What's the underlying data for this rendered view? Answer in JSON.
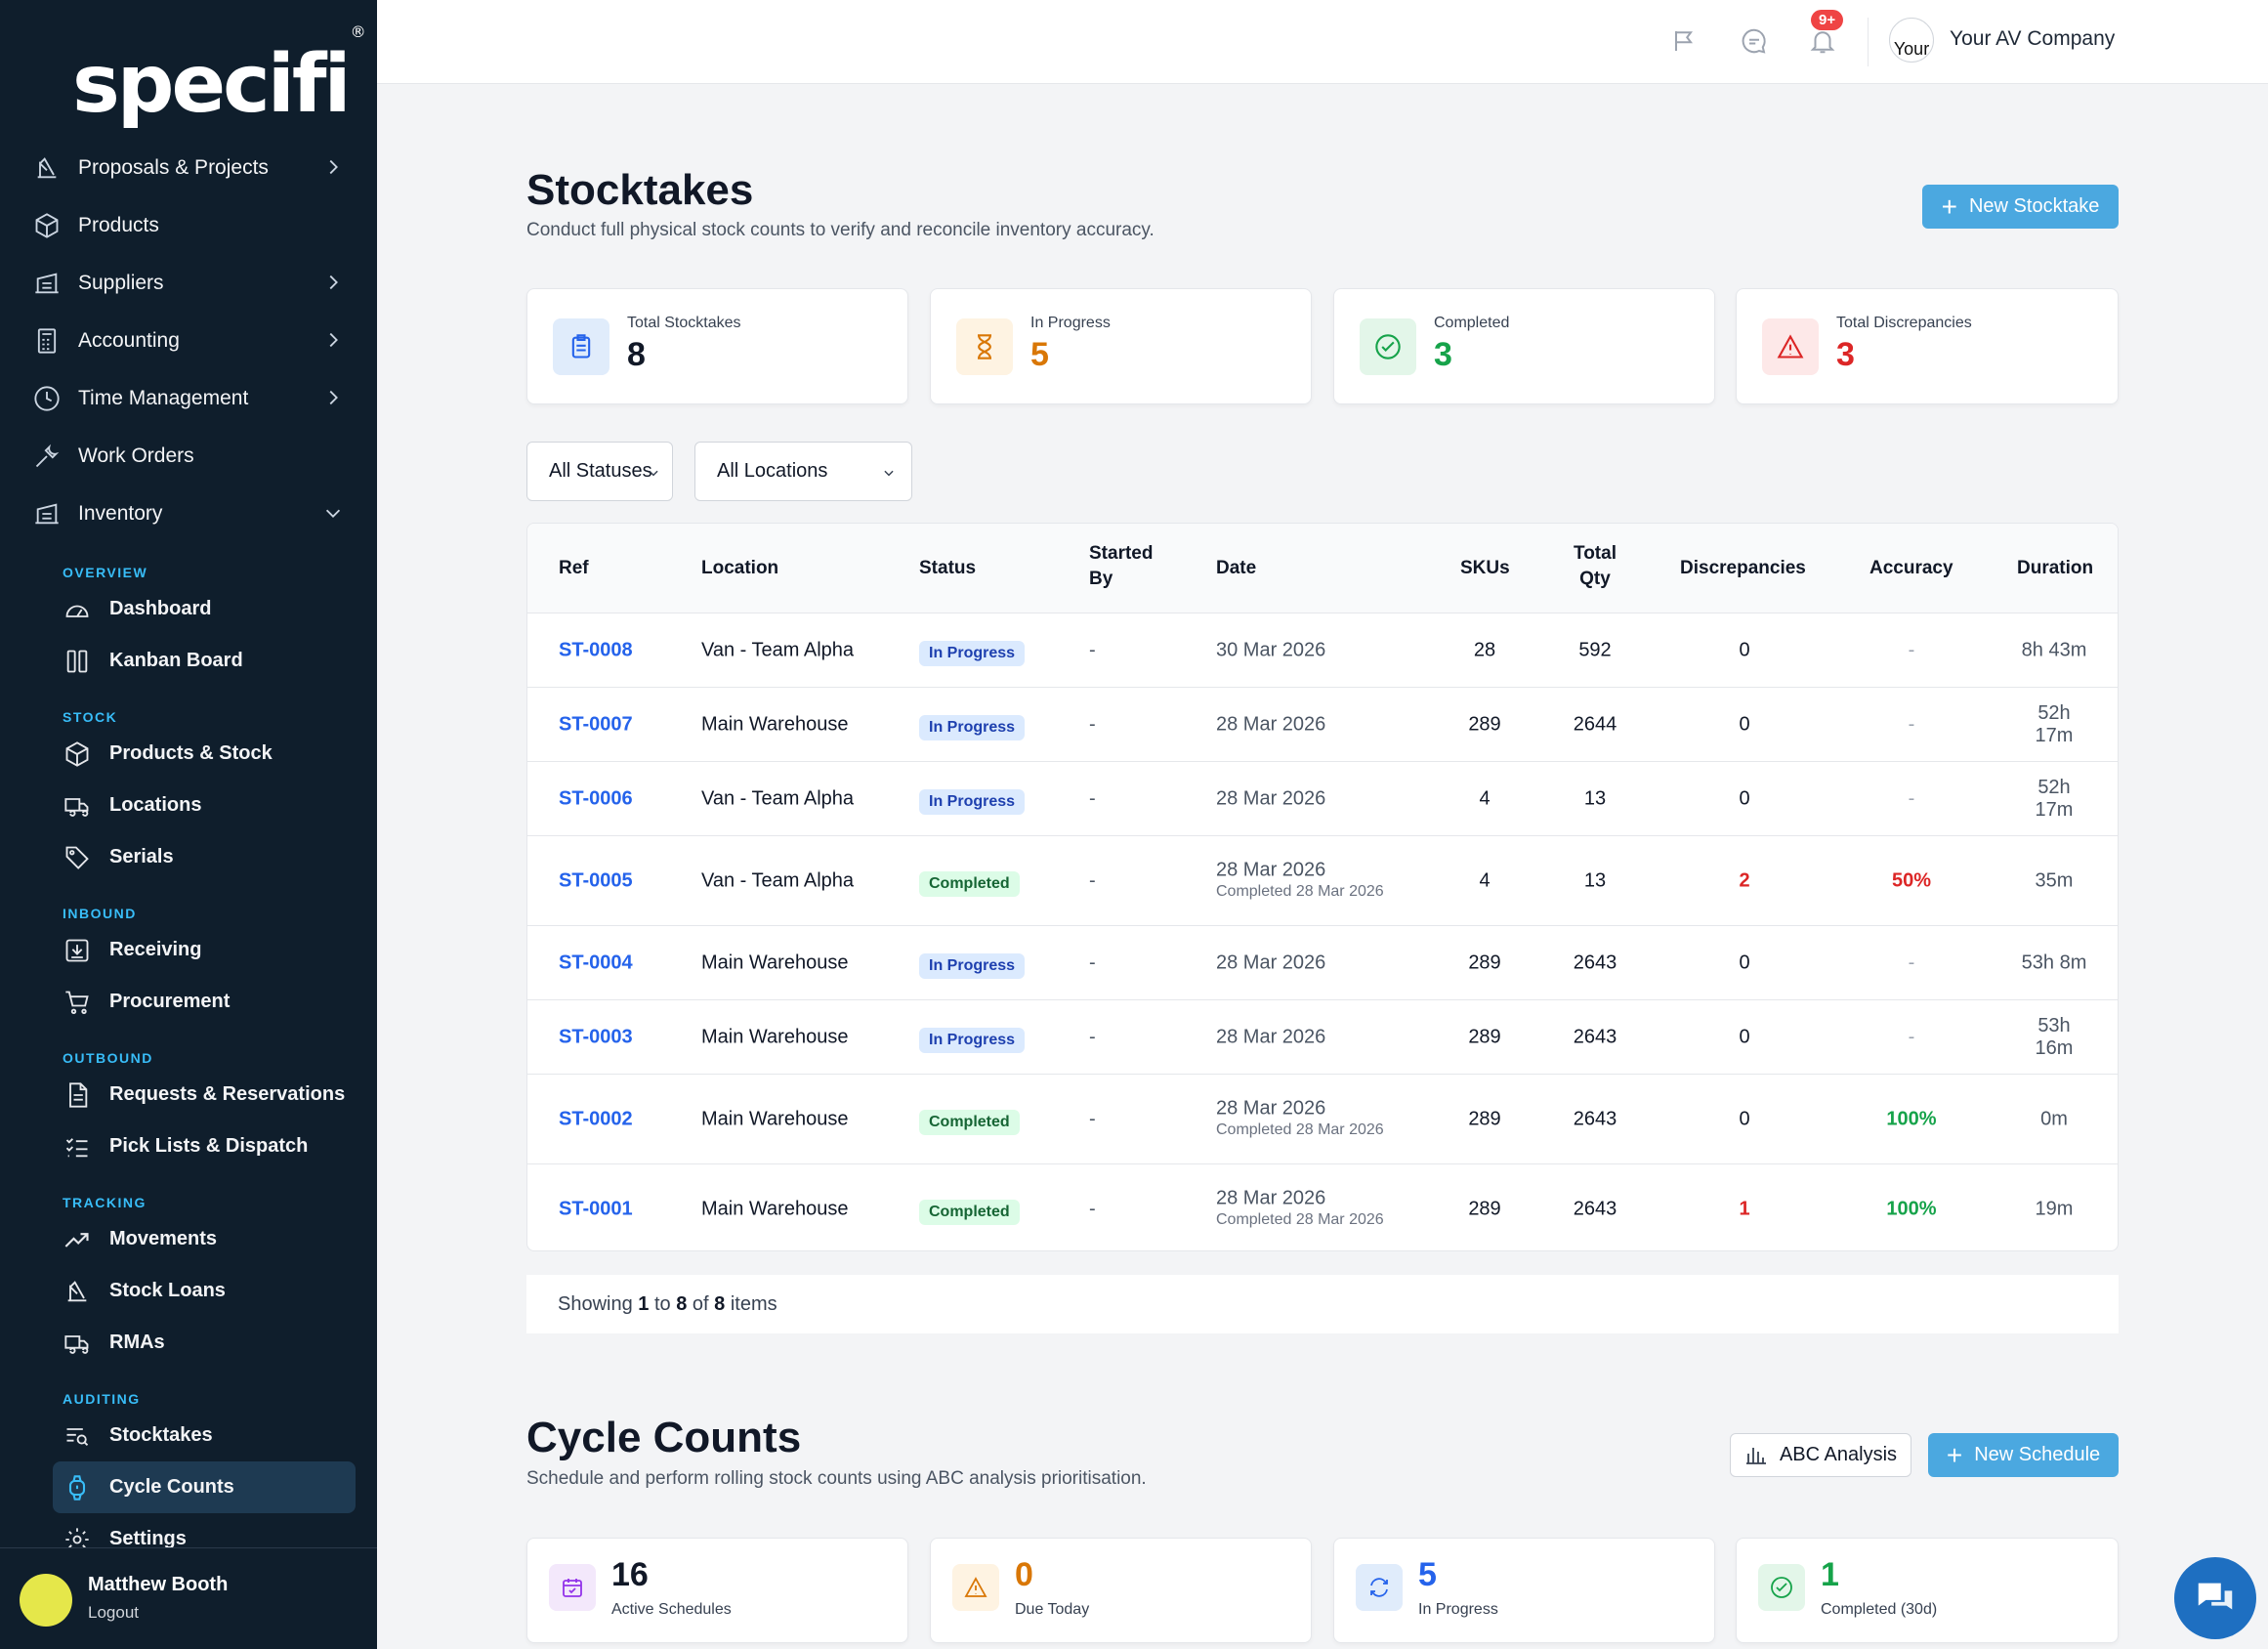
{
  "brand": {
    "logo_text": "specifi",
    "reg_mark": "®"
  },
  "sidebar": {
    "main": [
      {
        "label": "Proposals & Projects",
        "icon": "drafting-icon",
        "chevron": "right"
      },
      {
        "label": "Products",
        "icon": "box-icon",
        "chevron": ""
      },
      {
        "label": "Suppliers",
        "icon": "warehouse-icon",
        "chevron": "right"
      },
      {
        "label": "Accounting",
        "icon": "calculator-icon",
        "chevron": "right"
      },
      {
        "label": "Time Management",
        "icon": "clock-icon",
        "chevron": "right"
      },
      {
        "label": "Work Orders",
        "icon": "wrench-icon",
        "chevron": ""
      },
      {
        "label": "Inventory",
        "icon": "warehouse-icon",
        "chevron": "down"
      }
    ],
    "sections": {
      "overview": "OVERVIEW",
      "stock": "STOCK",
      "inbound": "INBOUND",
      "outbound": "OUTBOUND",
      "tracking": "TRACKING",
      "auditing": "AUDITING"
    },
    "sub": {
      "dashboard": "Dashboard",
      "kanban": "Kanban Board",
      "products_stock": "Products & Stock",
      "locations": "Locations",
      "serials": "Serials",
      "receiving": "Receiving",
      "procurement": "Procurement",
      "requests": "Requests & Reservations",
      "picklists": "Pick Lists & Dispatch",
      "movements": "Movements",
      "stock_loans": "Stock Loans",
      "rmas": "RMAs",
      "stocktakes": "Stocktakes",
      "cycle_counts": "Cycle Counts",
      "settings": "Settings"
    },
    "user": {
      "name": "Matthew Booth",
      "logout": "Logout"
    }
  },
  "topbar": {
    "notification_badge": "9+",
    "company_avatar_alt": "Your",
    "company_name": "Your AV Company"
  },
  "stocktakes": {
    "title": "Stocktakes",
    "subtitle": "Conduct full physical stock counts to verify and reconcile inventory accuracy.",
    "new_button": "New Stocktake",
    "stats": [
      {
        "label": "Total Stocktakes",
        "value": "8",
        "color": "#111827",
        "icon": "clipboard-icon",
        "bg": "#e0ecfb"
      },
      {
        "label": "In Progress",
        "value": "5",
        "color": "#d97706",
        "icon": "hourglass-icon",
        "bg": "#fef3e2"
      },
      {
        "label": "Completed",
        "value": "3",
        "color": "#16a34a",
        "icon": "check-circle-icon",
        "bg": "#e3f6e9"
      },
      {
        "label": "Total Discrepancies",
        "value": "3",
        "color": "#dc2626",
        "icon": "warning-icon",
        "bg": "#fde8e8"
      }
    ],
    "filters": {
      "status": "All Statuses",
      "location": "All Locations"
    },
    "columns": {
      "ref": "Ref",
      "location": "Location",
      "status": "Status",
      "started_by_1": "Started",
      "started_by_2": "By",
      "date": "Date",
      "skus": "SKUs",
      "total_qty_1": "Total",
      "total_qty_2": "Qty",
      "discrepancies": "Discrepancies",
      "accuracy": "Accuracy",
      "duration": "Duration"
    },
    "rows": [
      {
        "ref": "ST-0008",
        "location": "Van - Team Alpha",
        "status": "In Progress",
        "started_by": "-",
        "date": "30 Mar 2026",
        "completed": "",
        "skus": "28",
        "qty": "592",
        "disc": "0",
        "acc": "-",
        "duration": "8h 43m"
      },
      {
        "ref": "ST-0007",
        "location": "Main Warehouse",
        "status": "In Progress",
        "started_by": "-",
        "date": "28 Mar 2026",
        "completed": "",
        "skus": "289",
        "qty": "2644",
        "disc": "0",
        "acc": "-",
        "duration": "52h 17m"
      },
      {
        "ref": "ST-0006",
        "location": "Van - Team Alpha",
        "status": "In Progress",
        "started_by": "-",
        "date": "28 Mar 2026",
        "completed": "",
        "skus": "4",
        "qty": "13",
        "disc": "0",
        "acc": "-",
        "duration": "52h 17m"
      },
      {
        "ref": "ST-0005",
        "location": "Van - Team Alpha",
        "status": "Completed",
        "started_by": "-",
        "date": "28 Mar 2026",
        "completed": "Completed 28 Mar 2026",
        "skus": "4",
        "qty": "13",
        "disc": "2",
        "acc": "50%",
        "duration": "35m"
      },
      {
        "ref": "ST-0004",
        "location": "Main Warehouse",
        "status": "In Progress",
        "started_by": "-",
        "date": "28 Mar 2026",
        "completed": "",
        "skus": "289",
        "qty": "2643",
        "disc": "0",
        "acc": "-",
        "duration": "53h 8m"
      },
      {
        "ref": "ST-0003",
        "location": "Main Warehouse",
        "status": "In Progress",
        "started_by": "-",
        "date": "28 Mar 2026",
        "completed": "",
        "skus": "289",
        "qty": "2643",
        "disc": "0",
        "acc": "-",
        "duration": "53h 16m"
      },
      {
        "ref": "ST-0002",
        "location": "Main Warehouse",
        "status": "Completed",
        "started_by": "-",
        "date": "28 Mar 2026",
        "completed": "Completed 28 Mar 2026",
        "skus": "289",
        "qty": "2643",
        "disc": "0",
        "acc": "100%",
        "duration": "0m"
      },
      {
        "ref": "ST-0001",
        "location": "Main Warehouse",
        "status": "Completed",
        "started_by": "-",
        "date": "28 Mar 2026",
        "completed": "Completed 28 Mar 2026",
        "skus": "289",
        "qty": "2643",
        "disc": "1",
        "acc": "100%",
        "duration": "19m"
      }
    ],
    "pager": {
      "prefix": "Showing",
      "from": "1",
      "to_word": "to",
      "to": "8",
      "of_word": "of",
      "total": "8",
      "suffix": "items"
    }
  },
  "cycle_counts": {
    "title": "Cycle Counts",
    "subtitle": "Schedule and perform rolling stock counts using ABC analysis prioritisation.",
    "abc_button": "ABC Analysis",
    "new_button": "New Schedule",
    "stats": [
      {
        "label": "Active Schedules",
        "value": "16",
        "color": "#111827",
        "icon": "calendar-check-icon",
        "bg": "#f3e8fb"
      },
      {
        "label": "Due Today",
        "value": "0",
        "color": "#d97706",
        "icon": "warning-icon",
        "bg": "#fef3e2"
      },
      {
        "label": "In Progress",
        "value": "5",
        "color": "#2563eb",
        "icon": "refresh-icon",
        "bg": "#e0ecfb"
      },
      {
        "label": "Completed (30d)",
        "value": "1",
        "color": "#16a34a",
        "icon": "check-circle-icon",
        "bg": "#e3f6e9"
      }
    ]
  }
}
